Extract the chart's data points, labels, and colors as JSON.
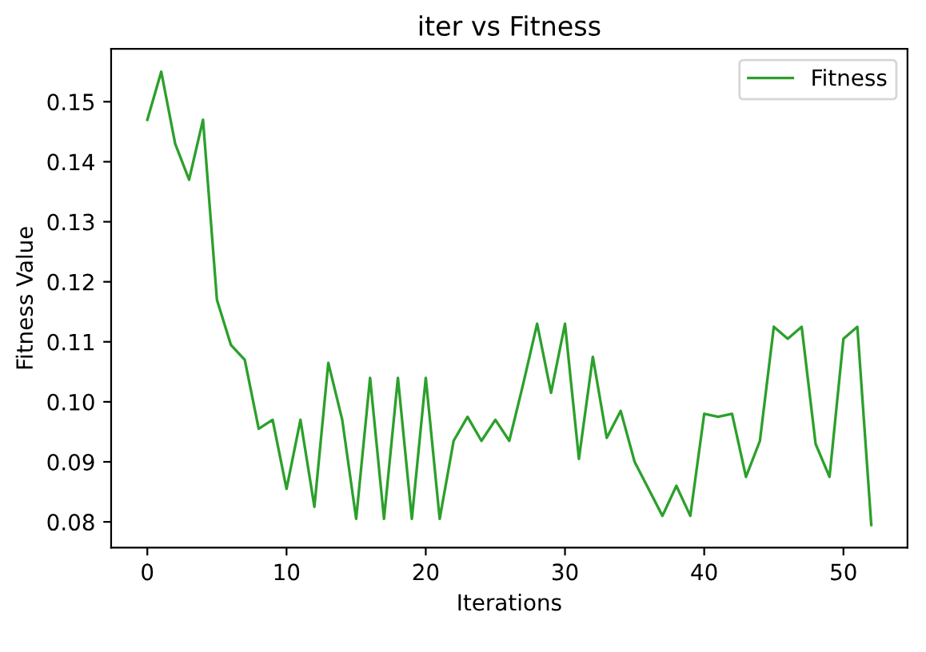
{
  "chart_data": {
    "type": "line",
    "title": "iter vs Fitness",
    "xlabel": "Iterations",
    "ylabel": "Fitness Value",
    "x": [
      0,
      1,
      2,
      3,
      4,
      5,
      6,
      7,
      8,
      9,
      10,
      11,
      12,
      13,
      14,
      15,
      16,
      17,
      18,
      19,
      20,
      21,
      22,
      23,
      24,
      25,
      26,
      27,
      28,
      29,
      30,
      31,
      32,
      33,
      34,
      35,
      36,
      37,
      38,
      39,
      40,
      41,
      42,
      43,
      44,
      45,
      46,
      47,
      48,
      49,
      50,
      51,
      52
    ],
    "series": [
      {
        "name": "Fitness",
        "color": "#2ca02c",
        "values": [
          0.147,
          0.155,
          0.143,
          0.137,
          0.147,
          0.117,
          0.1095,
          0.107,
          0.0955,
          0.097,
          0.0855,
          0.097,
          0.0825,
          0.1065,
          0.097,
          0.0805,
          0.104,
          0.0805,
          0.104,
          0.0805,
          0.104,
          0.0805,
          0.0935,
          0.0975,
          0.0935,
          0.097,
          0.0935,
          0.103,
          0.113,
          0.1015,
          0.113,
          0.0905,
          0.1075,
          0.094,
          0.0985,
          0.09,
          0.0855,
          0.081,
          0.086,
          0.081,
          0.098,
          0.0975,
          0.098,
          0.0875,
          0.0935,
          0.1125,
          0.1105,
          0.1125,
          0.093,
          0.0875,
          0.1105,
          0.1125,
          0.0795
        ]
      }
    ],
    "xlim": [
      -2.6,
      54.6
    ],
    "ylim": [
      0.0757,
      0.1588
    ],
    "xticks": [
      0,
      10,
      20,
      30,
      40,
      50
    ],
    "yticks": [
      {
        "value": 0.08,
        "label": "0.08"
      },
      {
        "value": 0.09,
        "label": "0.09"
      },
      {
        "value": 0.1,
        "label": "0.10"
      },
      {
        "value": 0.11,
        "label": "0.11"
      },
      {
        "value": 0.12,
        "label": "0.12"
      },
      {
        "value": 0.13,
        "label": "0.13"
      },
      {
        "value": 0.14,
        "label": "0.14"
      },
      {
        "value": 0.15,
        "label": "0.15"
      }
    ],
    "legend": "top right",
    "grid": false,
    "marker": "none",
    "line_style": "solid"
  }
}
